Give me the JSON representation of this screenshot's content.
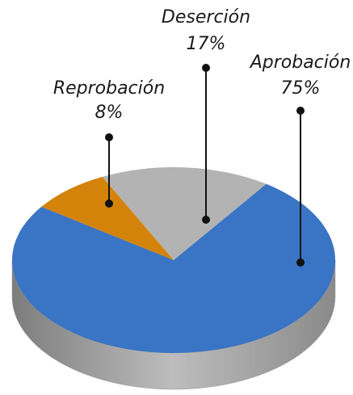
{
  "chart_data": {
    "type": "pie",
    "categories": [
      "Aprobación",
      "Deserción",
      "Reprobación"
    ],
    "values": [
      75,
      17,
      8
    ],
    "value_labels": [
      "75%",
      "17%",
      "8%"
    ],
    "colors": [
      "#3a74c4",
      "#b3b3b3",
      "#d4830a"
    ]
  }
}
